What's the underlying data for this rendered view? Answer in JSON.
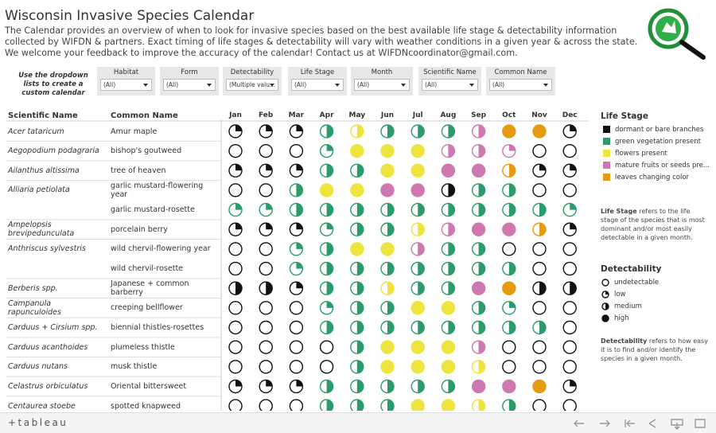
{
  "header": {
    "title": "Wisconsin Invasive Species Calendar",
    "description": "The Calendar provides an overview of when to look for invasive species based on the best available life stage & detectability information collected by WIFDN & partners. Exact timing of life stages & detectability will vary with weather conditions in a given year & across the state. We welcome your feedback to improve the accuracy of the calendar! Contact us at WIFDNcoordinator@gmail.com."
  },
  "filters": {
    "instruction": "Use the dropdown lists to create a custom calendar",
    "items": [
      {
        "label": "Habitat",
        "value": "(All)"
      },
      {
        "label": "Form",
        "value": "(All)"
      },
      {
        "label": "Detectability",
        "value": "(Multiple valu..."
      },
      {
        "label": "Life Stage",
        "value": "(All)"
      },
      {
        "label": "Month",
        "value": "(All)"
      },
      {
        "label": "Scientific Name",
        "value": "(All)"
      },
      {
        "label": "Common Name",
        "value": "(All)"
      }
    ]
  },
  "calendar": {
    "columns": [
      "Scientific Name",
      "Common Name"
    ],
    "months": [
      "Jan",
      "Feb",
      "Mar",
      "Apr",
      "May",
      "Jun",
      "Jul",
      "Aug",
      "Sep",
      "Oct",
      "Nov",
      "Dec"
    ],
    "rows": [
      {
        "scientific": "Acer tataricum",
        "common": "Amur maple",
        "cells": [
          [
            0,
            1
          ],
          [
            0,
            1
          ],
          [
            0,
            1
          ],
          [
            1,
            2
          ],
          [
            2,
            2
          ],
          [
            1,
            2
          ],
          [
            1,
            2
          ],
          [
            1,
            2
          ],
          [
            3,
            2
          ],
          [
            4,
            3
          ],
          [
            4,
            3
          ],
          [
            0,
            1
          ]
        ]
      },
      {
        "scientific": "Aegopodium podagraria",
        "common": "bishop's goutweed",
        "cells": [
          [
            0,
            0
          ],
          [
            0,
            0
          ],
          [
            0,
            0
          ],
          [
            1,
            1
          ],
          [
            2,
            3
          ],
          [
            2,
            3
          ],
          [
            2,
            3
          ],
          [
            3,
            2
          ],
          [
            3,
            2
          ],
          [
            3,
            1
          ],
          [
            0,
            0
          ],
          [
            0,
            0
          ]
        ]
      },
      {
        "scientific": "Ailanthus altissima",
        "common": "tree of heaven",
        "cells": [
          [
            0,
            1
          ],
          [
            0,
            1
          ],
          [
            0,
            1
          ],
          [
            1,
            2
          ],
          [
            1,
            2
          ],
          [
            2,
            3
          ],
          [
            2,
            3
          ],
          [
            3,
            3
          ],
          [
            3,
            3
          ],
          [
            4,
            2
          ],
          [
            0,
            1
          ],
          [
            0,
            1
          ]
        ]
      },
      {
        "scientific": "Alliaria petiolata",
        "common": "garlic mustard-flowering year",
        "cells": [
          [
            0,
            0
          ],
          [
            0,
            0
          ],
          [
            1,
            2
          ],
          [
            2,
            3
          ],
          [
            2,
            3
          ],
          [
            3,
            3
          ],
          [
            3,
            3
          ],
          [
            0,
            2
          ],
          [
            1,
            2
          ],
          [
            1,
            2
          ],
          [
            0,
            0
          ],
          [
            0,
            0
          ]
        ]
      },
      {
        "scientific": null,
        "common": "garlic mustard-rosette",
        "cells": [
          [
            1,
            1
          ],
          [
            1,
            1
          ],
          [
            1,
            2
          ],
          [
            1,
            2
          ],
          [
            1,
            2
          ],
          [
            1,
            2
          ],
          [
            1,
            2
          ],
          [
            1,
            2
          ],
          [
            1,
            2
          ],
          [
            1,
            2
          ],
          [
            1,
            2
          ],
          [
            1,
            1
          ]
        ]
      },
      {
        "scientific": "Ampelopsis brevipedunculata",
        "common": "porcelain berry",
        "cells": [
          [
            0,
            1
          ],
          [
            0,
            1
          ],
          [
            0,
            1
          ],
          [
            1,
            1
          ],
          [
            1,
            2
          ],
          [
            1,
            2
          ],
          [
            2,
            2
          ],
          [
            3,
            2
          ],
          [
            3,
            3
          ],
          [
            3,
            3
          ],
          [
            4,
            2
          ],
          [
            0,
            1
          ]
        ]
      },
      {
        "scientific": "Anthriscus sylvestris",
        "common": "wild chervil-flowering year",
        "cells": [
          [
            0,
            0
          ],
          [
            0,
            0
          ],
          [
            1,
            1
          ],
          [
            1,
            2
          ],
          [
            2,
            3
          ],
          [
            2,
            3
          ],
          [
            3,
            2
          ],
          [
            1,
            2
          ],
          [
            1,
            2
          ],
          [
            0,
            0
          ],
          [
            0,
            0
          ],
          [
            0,
            0
          ]
        ]
      },
      {
        "scientific": null,
        "common": "wild chervil-rosette",
        "cells": [
          [
            0,
            0
          ],
          [
            0,
            0
          ],
          [
            1,
            1
          ],
          [
            1,
            2
          ],
          [
            1,
            2
          ],
          [
            1,
            2
          ],
          [
            1,
            2
          ],
          [
            1,
            2
          ],
          [
            1,
            2
          ],
          [
            1,
            2
          ],
          [
            0,
            0
          ],
          [
            0,
            0
          ]
        ]
      },
      {
        "scientific": "Berberis spp.",
        "common": "Japanese + common barberry",
        "cells": [
          [
            0,
            2
          ],
          [
            0,
            2
          ],
          [
            0,
            1
          ],
          [
            1,
            2
          ],
          [
            1,
            2
          ],
          [
            2,
            2
          ],
          [
            1,
            2
          ],
          [
            1,
            2
          ],
          [
            3,
            3
          ],
          [
            4,
            3
          ],
          [
            0,
            2
          ],
          [
            0,
            2
          ]
        ]
      },
      {
        "scientific": "Campanula rapunculoides",
        "common": "creeping bellflower",
        "cells": [
          [
            0,
            0
          ],
          [
            0,
            0
          ],
          [
            0,
            0
          ],
          [
            1,
            1
          ],
          [
            1,
            2
          ],
          [
            1,
            2
          ],
          [
            2,
            3
          ],
          [
            2,
            3
          ],
          [
            1,
            2
          ],
          [
            1,
            1
          ],
          [
            0,
            0
          ],
          [
            0,
            0
          ]
        ]
      },
      {
        "scientific": "Carduus + Cirsium spp.",
        "common": "biennial thistles-rosettes",
        "cells": [
          [
            0,
            0
          ],
          [
            0,
            0
          ],
          [
            0,
            0
          ],
          [
            1,
            2
          ],
          [
            1,
            2
          ],
          [
            1,
            2
          ],
          [
            1,
            2
          ],
          [
            1,
            2
          ],
          [
            1,
            2
          ],
          [
            1,
            2
          ],
          [
            1,
            2
          ],
          [
            0,
            0
          ]
        ]
      },
      {
        "scientific": "Carduus acanthoides",
        "common": "plumeless thistle",
        "cells": [
          [
            0,
            0
          ],
          [
            0,
            0
          ],
          [
            0,
            0
          ],
          [
            0,
            0
          ],
          [
            1,
            2
          ],
          [
            2,
            3
          ],
          [
            2,
            3
          ],
          [
            2,
            3
          ],
          [
            3,
            2
          ],
          [
            0,
            0
          ],
          [
            0,
            0
          ],
          [
            0,
            0
          ]
        ]
      },
      {
        "scientific": "Carduus nutans",
        "common": "musk thistle",
        "cells": [
          [
            0,
            0
          ],
          [
            0,
            0
          ],
          [
            0,
            0
          ],
          [
            0,
            0
          ],
          [
            1,
            2
          ],
          [
            2,
            3
          ],
          [
            2,
            3
          ],
          [
            2,
            3
          ],
          [
            2,
            2
          ],
          [
            0,
            0
          ],
          [
            0,
            0
          ],
          [
            0,
            0
          ]
        ]
      },
      {
        "scientific": "Celastrus orbiculatus",
        "common": "Oriental bittersweet",
        "cells": [
          [
            0,
            1
          ],
          [
            0,
            1
          ],
          [
            0,
            1
          ],
          [
            1,
            2
          ],
          [
            1,
            2
          ],
          [
            1,
            2
          ],
          [
            1,
            2
          ],
          [
            1,
            2
          ],
          [
            3,
            3
          ],
          [
            3,
            3
          ],
          [
            4,
            3
          ],
          [
            0,
            1
          ]
        ]
      },
      {
        "scientific": "Centaurea stoebe",
        "common": "spotted knapweed",
        "cells": [
          [
            0,
            0
          ],
          [
            0,
            0
          ],
          [
            0,
            0
          ],
          [
            1,
            2
          ],
          [
            1,
            2
          ],
          [
            1,
            2
          ],
          [
            2,
            3
          ],
          [
            2,
            3
          ],
          [
            2,
            2
          ],
          [
            1,
            2
          ],
          [
            0,
            0
          ],
          [
            0,
            0
          ]
        ]
      }
    ]
  },
  "legend": {
    "life_stage": {
      "title": "Life Stage",
      "items": [
        {
          "label": "dormant or bare branches",
          "color": "#111111"
        },
        {
          "label": "green vegetation present",
          "color": "#2b9b6b"
        },
        {
          "label": "flowers present",
          "color": "#ede43e"
        },
        {
          "label": "mature fruits or seeds pre...",
          "color": "#cf77b0"
        },
        {
          "label": "leaves changing color",
          "color": "#e59b10"
        }
      ],
      "note_term": "Life Stage",
      "note": " refers to the life stage of the species that is most dominant and/or most easily detectable in a given month."
    },
    "detectability": {
      "title": "Detectability",
      "items": [
        {
          "label": "undetectable"
        },
        {
          "label": "low"
        },
        {
          "label": "medium"
        },
        {
          "label": "high"
        }
      ],
      "note_term": "Detectability",
      "note": " refers to how easy it is to find and/or identify the species in a given month."
    }
  },
  "toolbar": {
    "brand": "+tableau"
  }
}
